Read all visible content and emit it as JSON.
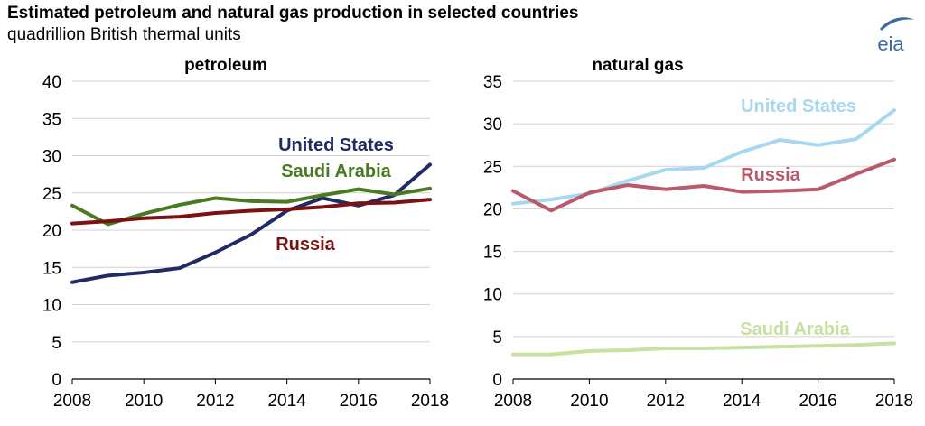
{
  "header": {
    "title": "Estimated petroleum and natural gas production in selected countries",
    "subtitle": "quadrillion British thermal units",
    "logo_text": "eia"
  },
  "colors": {
    "us_petroleum": "#1f2a66",
    "saudi_petroleum": "#4a7b23",
    "russia_petroleum": "#7b1212",
    "us_gas": "#a6d8f2",
    "russia_gas": "#b85a6b",
    "saudi_gas": "#c9e0a0",
    "logo": "#3b6aa8",
    "grid": "#d0d0d0",
    "axis": "#000000"
  },
  "chart_data": [
    {
      "type": "line",
      "title": "petroleum",
      "xlabel": "",
      "ylabel": "",
      "xlim": [
        2008,
        2018
      ],
      "ylim": [
        0,
        40
      ],
      "x_ticks": [
        "2008",
        "2010",
        "2012",
        "2014",
        "2016",
        "2018"
      ],
      "y_ticks": [
        "0",
        "5",
        "10",
        "15",
        "20",
        "25",
        "30",
        "35",
        "40"
      ],
      "grid": true,
      "x": [
        2008,
        2009,
        2010,
        2011,
        2012,
        2013,
        2014,
        2015,
        2016,
        2017,
        2018
      ],
      "series": [
        {
          "name": "United States",
          "color_key": "us_petroleum",
          "values": [
            13.0,
            13.9,
            14.3,
            14.9,
            17.0,
            19.4,
            22.6,
            24.3,
            23.3,
            24.7,
            28.8
          ]
        },
        {
          "name": "Saudi Arabia",
          "color_key": "saudi_petroleum",
          "values": [
            23.3,
            20.8,
            22.2,
            23.4,
            24.3,
            23.9,
            23.8,
            24.7,
            25.5,
            24.8,
            25.6
          ]
        },
        {
          "name": "Russia",
          "color_key": "russia_petroleum",
          "values": [
            20.9,
            21.2,
            21.6,
            21.8,
            22.3,
            22.6,
            22.8,
            23.1,
            23.6,
            23.7,
            24.1
          ]
        }
      ]
    },
    {
      "type": "line",
      "title": "natural gas",
      "xlabel": "",
      "ylabel": "",
      "xlim": [
        2008,
        2018
      ],
      "ylim": [
        0,
        35
      ],
      "x_ticks": [
        "2008",
        "2010",
        "2012",
        "2014",
        "2016",
        "2018"
      ],
      "y_ticks": [
        "0",
        "5",
        "10",
        "15",
        "20",
        "25",
        "30",
        "35"
      ],
      "grid": true,
      "x": [
        2008,
        2009,
        2010,
        2011,
        2012,
        2013,
        2014,
        2015,
        2016,
        2017,
        2018
      ],
      "series": [
        {
          "name": "United States",
          "color_key": "us_gas",
          "values": [
            20.6,
            21.1,
            21.8,
            23.3,
            24.6,
            24.8,
            26.7,
            28.1,
            27.5,
            28.2,
            31.6
          ]
        },
        {
          "name": "Russia",
          "color_key": "russia_gas",
          "values": [
            22.1,
            19.8,
            21.9,
            22.8,
            22.3,
            22.7,
            22.0,
            22.1,
            22.3,
            24.1,
            25.8
          ]
        },
        {
          "name": "Saudi Arabia",
          "color_key": "saudi_gas",
          "values": [
            2.9,
            2.9,
            3.3,
            3.4,
            3.6,
            3.6,
            3.7,
            3.8,
            3.9,
            4.0,
            4.2
          ]
        }
      ]
    }
  ]
}
